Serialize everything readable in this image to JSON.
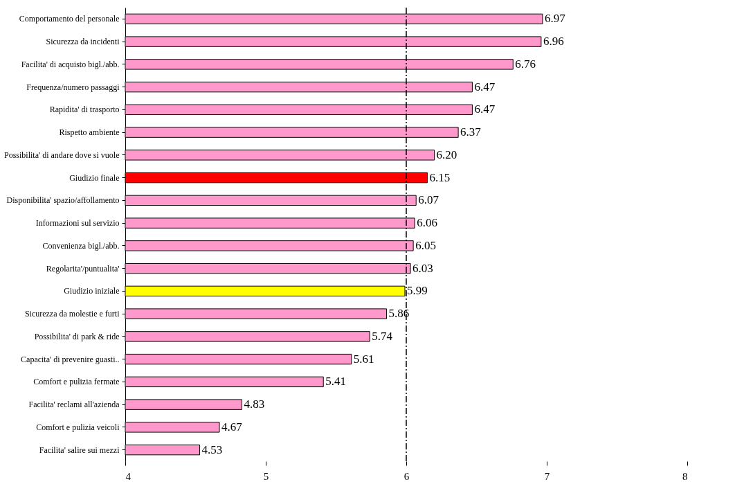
{
  "chart_data": {
    "type": "bar",
    "orientation": "horizontal",
    "categories": [
      "Comportamento del personale",
      "Sicurezza da incidenti",
      "Facilita' di acquisto bigl./abb.",
      "Frequenza/numero passaggi",
      "Rapidita' di trasporto",
      "Rispetto ambiente",
      "Possibilita' di andare dove si vuole",
      "Giudizio finale",
      "Disponibilita' spazio/affollamento",
      "Informazioni sul servizio",
      "Convenienza bigl./abb.",
      "Regolarita'/puntualita'",
      "Giudizio iniziale",
      "Sicurezza da molestie e furti",
      "Possibilita' di park & ride",
      "Capacita' di prevenire guasti..",
      "Comfort e pulizia fermate",
      "Facilita' reclami all'azienda",
      "Comfort e pulizia veicoli",
      "Facilita' salire sui mezzi"
    ],
    "values": [
      6.97,
      6.96,
      6.76,
      6.47,
      6.47,
      6.37,
      6.2,
      6.15,
      6.07,
      6.06,
      6.05,
      6.03,
      5.99,
      5.86,
      5.74,
      5.61,
      5.41,
      4.83,
      4.67,
      4.53
    ],
    "value_labels": [
      "6.97",
      "6.96",
      "6.76",
      "6.47",
      "6.47",
      "6.37",
      "6.20",
      "6.15",
      "6.07",
      "6.06",
      "6.05",
      "6.03",
      "5.99",
      "5.86",
      "5.74",
      "5.61",
      "5.41",
      "4.83",
      "4.67",
      "4.53"
    ],
    "colors": [
      "#ff99cc",
      "#ff99cc",
      "#ff99cc",
      "#ff99cc",
      "#ff99cc",
      "#ff99cc",
      "#ff99cc",
      "#ff0000",
      "#ff99cc",
      "#ff99cc",
      "#ff99cc",
      "#ff99cc",
      "#ffff00",
      "#ff99cc",
      "#ff99cc",
      "#ff99cc",
      "#ff99cc",
      "#ff99cc",
      "#ff99cc",
      "#ff99cc"
    ],
    "xlim": [
      4,
      8
    ],
    "xticks": [
      4,
      5,
      6,
      7,
      8
    ],
    "ref_lines": [
      {
        "axis": "x",
        "value": 6,
        "color": "#000000",
        "line_style": "dashed"
      }
    ],
    "grid": false,
    "legend": false
  }
}
